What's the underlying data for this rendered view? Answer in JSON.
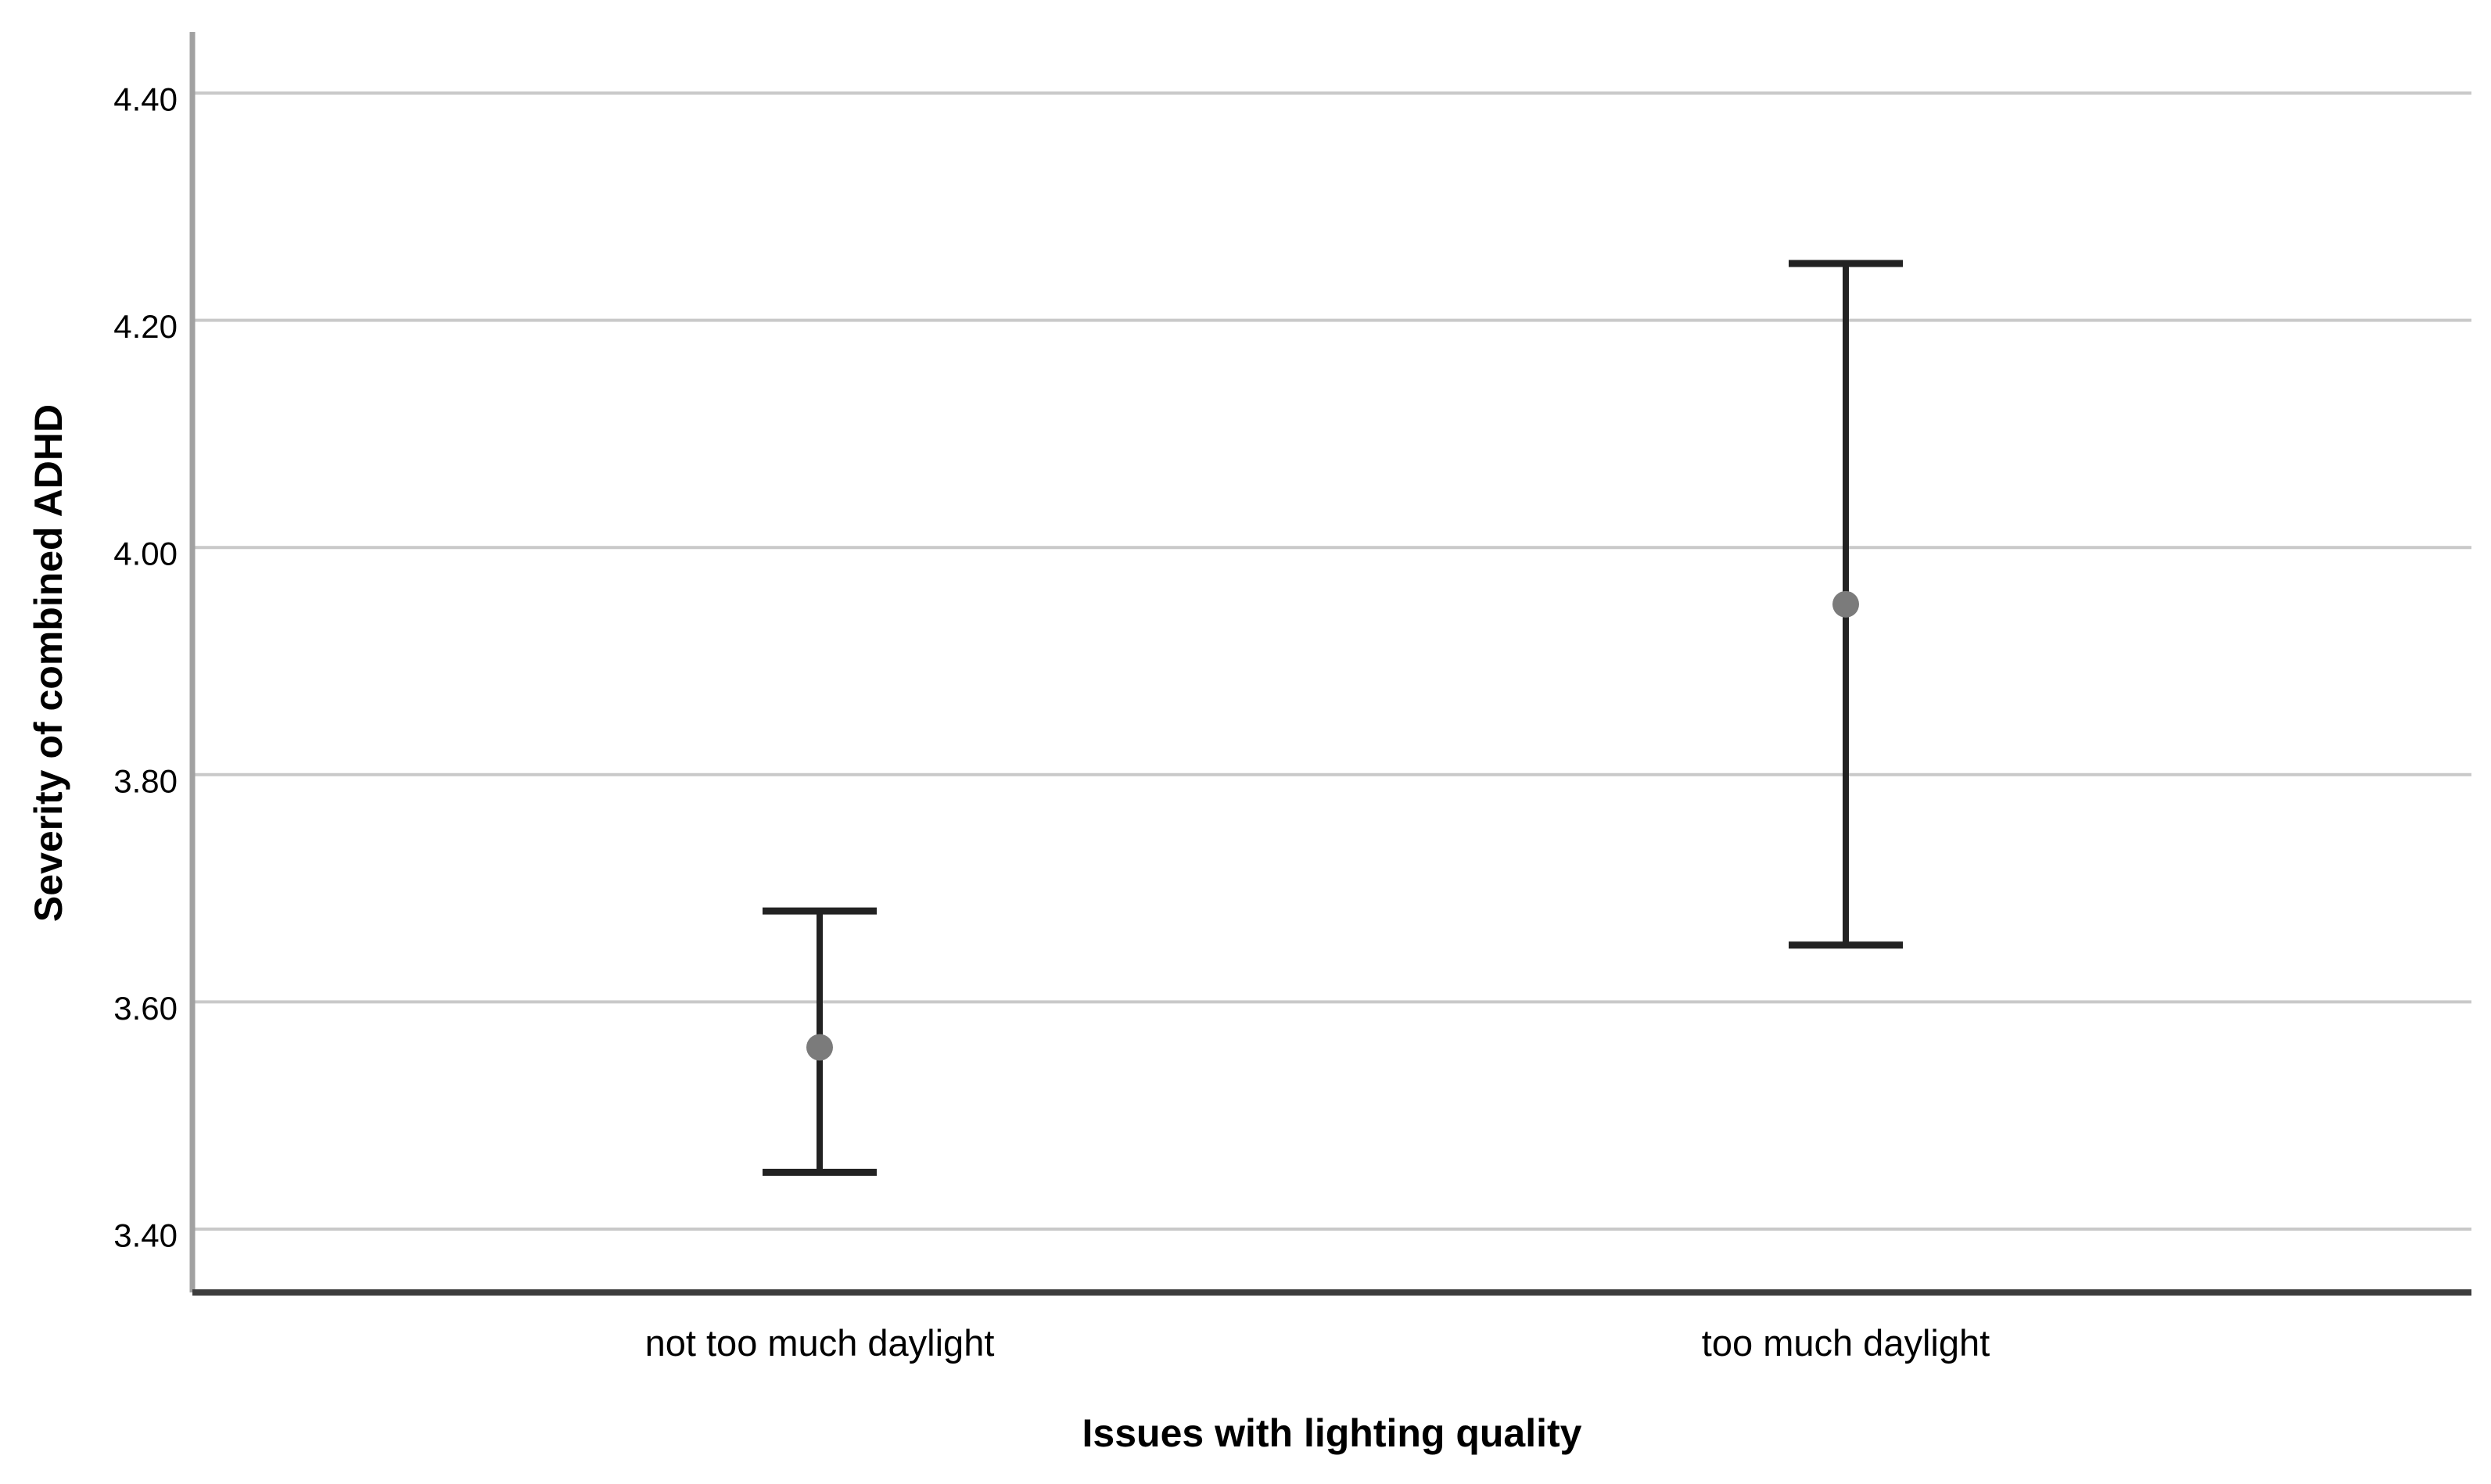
{
  "chart_data": {
    "type": "errorbar",
    "title": "",
    "xlabel": "Issues with lighting quality",
    "ylabel": "Severity of combined ADHD",
    "categories": [
      "not too much daylight",
      "too much daylight"
    ],
    "points": [
      {
        "category": "not too much daylight",
        "mean": 3.56,
        "ci_low": 3.45,
        "ci_high": 3.68
      },
      {
        "category": "too much daylight",
        "mean": 3.95,
        "ci_low": 3.65,
        "ci_high": 4.25
      }
    ],
    "yticks": [
      3.4,
      3.6,
      3.8,
      4.0,
      4.2,
      4.4
    ],
    "ytick_labels": [
      "3.40",
      "3.60",
      "3.80",
      "4.00",
      "4.20",
      "4.40"
    ],
    "ylim": [
      3.34,
      4.45
    ],
    "grid": true,
    "legend": null,
    "colors": {
      "background": "#ffffff",
      "gridline": "#c9c9c9",
      "y_axis_line": "#a1a1a1",
      "x_axis_line": "#3d3d3d",
      "error_bar": "#222222",
      "mean_point": "#7b7b7b",
      "text": "#000000"
    }
  }
}
